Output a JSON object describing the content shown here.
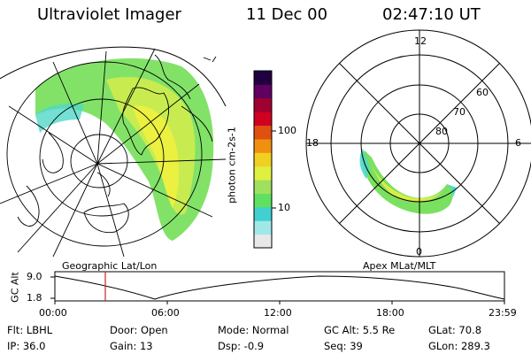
{
  "header": {
    "instrument": "Ultraviolet Imager",
    "date": "11 Dec 00",
    "time": "02:47:10 UT"
  },
  "colorbar": {
    "label": "photon cm-2s-1",
    "ticks": [
      "100",
      "10"
    ],
    "colors": [
      "#e8e8e8",
      "#a0e8e8",
      "#40d0d0",
      "#60e060",
      "#a0e060",
      "#e0f040",
      "#f0d020",
      "#f09010",
      "#e05010",
      "#d00020",
      "#a00030",
      "#600060",
      "#200040"
    ]
  },
  "left_panel": {
    "caption": "Geographic Lat/Lon"
  },
  "right_panel": {
    "caption": "Apex MLat/MLT",
    "mlt_labels": [
      "12",
      "18",
      "6",
      "0"
    ],
    "lat_labels": [
      "60",
      "70",
      "80"
    ]
  },
  "timeline": {
    "ylabel": "GC Alt",
    "y_ticks": [
      "9.0",
      "1.8"
    ],
    "x_ticks": [
      "00:00",
      "06:00",
      "12:00",
      "18:00",
      "23:59"
    ],
    "marker_color": "#d02020"
  },
  "info": {
    "row1": [
      "Flt: LBHL",
      "Door: Open",
      "Mode: Normal",
      "GC Alt: 5.5 Re",
      "GLat:  70.8"
    ],
    "row2": [
      "IP: 36.0",
      "Gain: 13",
      "Dsp:   -0.9",
      "Seq: 39",
      "GLon: 289.3"
    ]
  }
}
